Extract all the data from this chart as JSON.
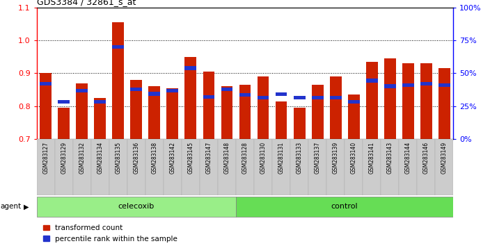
{
  "title": "GDS3384 / 32861_s_at",
  "categories": [
    "GSM283127",
    "GSM283129",
    "GSM283132",
    "GSM283134",
    "GSM283135",
    "GSM283136",
    "GSM283138",
    "GSM283142",
    "GSM283145",
    "GSM283147",
    "GSM283148",
    "GSM283128",
    "GSM283130",
    "GSM283131",
    "GSM283133",
    "GSM283137",
    "GSM283139",
    "GSM283140",
    "GSM283141",
    "GSM283143",
    "GSM283144",
    "GSM283146",
    "GSM283149"
  ],
  "red_values": [
    0.9,
    0.795,
    0.87,
    0.825,
    1.055,
    0.88,
    0.86,
    0.855,
    0.95,
    0.905,
    0.86,
    0.865,
    0.89,
    0.815,
    0.795,
    0.865,
    0.89,
    0.835,
    0.935,
    0.945,
    0.93,
    0.93,
    0.915
  ],
  "blue_values": [
    0.862,
    0.808,
    0.842,
    0.808,
    0.975,
    0.845,
    0.832,
    0.842,
    0.91,
    0.822,
    0.845,
    0.828,
    0.82,
    0.83,
    0.82,
    0.82,
    0.82,
    0.808,
    0.872,
    0.855,
    0.858,
    0.862,
    0.858
  ],
  "celecoxib_count": 11,
  "control_count": 12,
  "y_min": 0.7,
  "y_max": 1.1,
  "y_ticks_left": [
    0.7,
    0.8,
    0.9,
    1.0,
    1.1
  ],
  "y_ticks_right_pct": [
    0,
    25,
    50,
    75,
    100
  ],
  "bar_color_red": "#cc2200",
  "bar_color_blue": "#2233cc",
  "bar_width": 0.65,
  "celecoxib_color": "#99ee88",
  "control_color": "#66dd55",
  "agent_label": "agent",
  "celecoxib_label": "celecoxib",
  "control_label": "control",
  "legend_red": "transformed count",
  "legend_blue": "percentile rank within the sample"
}
